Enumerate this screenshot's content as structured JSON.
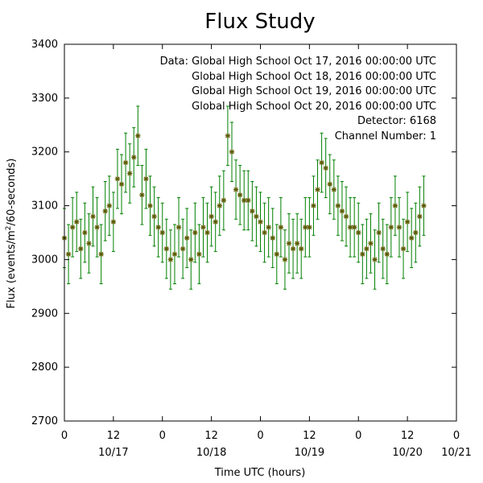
{
  "chart_data": {
    "type": "scatter",
    "title": "Flux Study",
    "xlabel": "Time UTC (hours)",
    "ylabel_prefix": "Flux (events/m",
    "ylabel_sup": "2",
    "ylabel_suffix": "/60-seconds)",
    "xlim": [
      0,
      96
    ],
    "ylim": [
      2700,
      3400
    ],
    "x_ticks": [
      {
        "x": 0,
        "label": "0",
        "date": ""
      },
      {
        "x": 12,
        "label": "12",
        "date": "10/17"
      },
      {
        "x": 24,
        "label": "0",
        "date": ""
      },
      {
        "x": 36,
        "label": "12",
        "date": "10/18"
      },
      {
        "x": 48,
        "label": "0",
        "date": ""
      },
      {
        "x": 60,
        "label": "12",
        "date": "10/19"
      },
      {
        "x": 72,
        "label": "0",
        "date": ""
      },
      {
        "x": 84,
        "label": "12",
        "date": "10/20"
      },
      {
        "x": 96,
        "label": "0",
        "date": "10/21"
      }
    ],
    "y_ticks": [
      2700,
      2800,
      2900,
      3000,
      3100,
      3200,
      3300,
      3400
    ],
    "legend_lines": [
      "Data: Global High School Oct 17, 2016 00:00:00 UTC",
      "Global High School Oct 18, 2016 00:00:00 UTC",
      "Global High School Oct 19, 2016 00:00:00 UTC",
      "Global High School Oct 20, 2016 00:00:00 UTC",
      "Detector: 6168",
      "Channel Number: 1"
    ],
    "legend_position": "top-right",
    "grid": false,
    "marker_color": "#5a5a00",
    "errorbar_color": "#008000",
    "series": [
      {
        "x": [
          0,
          1,
          2,
          3,
          4,
          5,
          6,
          7,
          8,
          9,
          10,
          11,
          12,
          13,
          14,
          15,
          16,
          17,
          18,
          19,
          20,
          21,
          22,
          23,
          24,
          25,
          26,
          27,
          28,
          29,
          30,
          31,
          32,
          33,
          34,
          35,
          36,
          37,
          38,
          39,
          40,
          41,
          42,
          43,
          44,
          45,
          46,
          47,
          48,
          49,
          50,
          51,
          52,
          53,
          54,
          55,
          56,
          57,
          58,
          59,
          60,
          61,
          62,
          63,
          64,
          65,
          66,
          67,
          68,
          69,
          70,
          71,
          72,
          73,
          74,
          75,
          76,
          77,
          78,
          79,
          80,
          81,
          82,
          83,
          84,
          85,
          86,
          87,
          88
        ],
        "y": [
          3040,
          3010,
          3060,
          3070,
          3020,
          3050,
          3030,
          3080,
          3060,
          3010,
          3090,
          3100,
          3070,
          3150,
          3140,
          3180,
          3160,
          3190,
          3230,
          3120,
          3150,
          3100,
          3080,
          3060,
          3050,
          3020,
          3000,
          3010,
          3060,
          3020,
          3040,
          3000,
          3050,
          3010,
          3060,
          3050,
          3080,
          3070,
          3100,
          3110,
          3230,
          3200,
          3130,
          3120,
          3110,
          3110,
          3090,
          3080,
          3070,
          3050,
          3060,
          3040,
          3010,
          3060,
          3000,
          3030,
          3020,
          3030,
          3020,
          3060,
          3060,
          3100,
          3130,
          3180,
          3170,
          3140,
          3130,
          3100,
          3090,
          3080,
          3060,
          3060,
          3050,
          3010,
          3020,
          3030,
          3000,
          3050,
          3020,
          3010,
          3060,
          3100,
          3060,
          3020,
          3070,
          3040,
          3050,
          3080,
          3100
        ],
        "error": [
          55,
          55,
          55,
          55,
          55,
          55,
          55,
          55,
          55,
          55,
          55,
          55,
          55,
          55,
          55,
          55,
          55,
          55,
          55,
          55,
          55,
          55,
          55,
          55,
          55,
          55,
          55,
          55,
          55,
          55,
          55,
          55,
          55,
          55,
          55,
          55,
          55,
          55,
          55,
          55,
          55,
          55,
          55,
          55,
          55,
          55,
          55,
          55,
          55,
          55,
          55,
          55,
          55,
          55,
          55,
          55,
          55,
          55,
          55,
          55,
          55,
          55,
          55,
          55,
          55,
          55,
          55,
          55,
          55,
          55,
          55,
          55,
          55,
          55,
          55,
          55,
          55,
          55,
          55,
          55,
          55,
          55,
          55,
          55,
          55,
          55,
          55,
          55,
          55
        ]
      }
    ]
  }
}
